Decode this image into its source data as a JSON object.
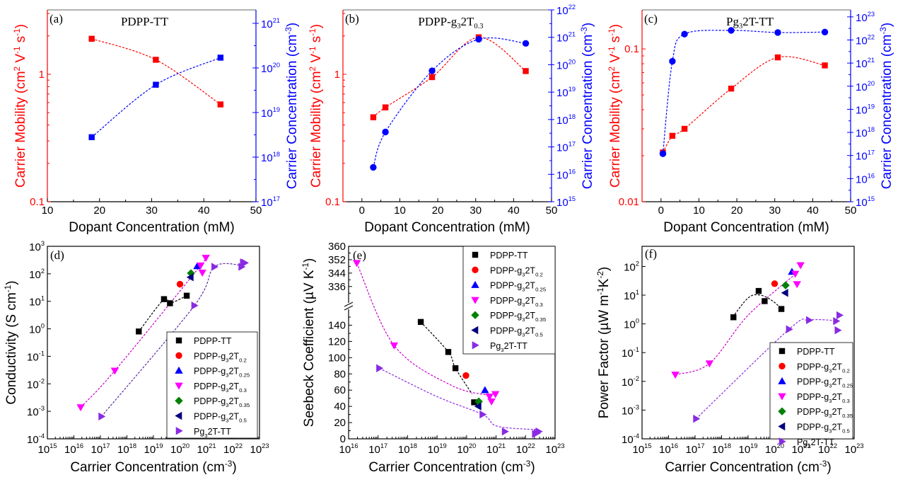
{
  "chart_data": [
    {
      "id": "a",
      "type": "scatter",
      "panel_label": "(a)",
      "title": "PDPP-TT",
      "xlabel": "Dopant Concentration (mM)",
      "ylabel_left": "Carrier Mobility (cm2 V-1 s-1)",
      "ylabel_right": "Carrier Concentration (cm-3)",
      "xlim": [
        10,
        50
      ],
      "xticks": [
        10,
        20,
        30,
        40,
        50
      ],
      "ylim_left": [
        0.1,
        3.2
      ],
      "yscale_left": "log",
      "yticks_left": [
        {
          "v": 0.1,
          "label": "0.1"
        },
        {
          "v": 1,
          "label": "1"
        }
      ],
      "ylim_right": [
        1e+17,
        2e+21
      ],
      "yscale_right": "log",
      "yticks_right_exp": [
        17,
        18,
        19,
        20,
        21
      ],
      "series": [
        {
          "name": "Carrier Mobility",
          "axis": "left",
          "color": "#ff0000",
          "marker": "square",
          "x": [
            18.5,
            30.8,
            43.2
          ],
          "y": [
            1.9,
            1.3,
            0.58
          ]
        },
        {
          "name": "Carrier Concentration",
          "axis": "right",
          "color": "#0000ff",
          "marker": "square",
          "x": [
            18.5,
            30.8,
            43.2
          ],
          "y": [
            2.8e+18,
            4.2e+19,
            1.7e+20
          ]
        }
      ]
    },
    {
      "id": "b",
      "type": "scatter",
      "panel_label": "(b)",
      "title": "PDPP-g3T0.3",
      "title_parts": [
        "PDPP-g",
        "3",
        "2T",
        "0.3"
      ],
      "xlabel": "Dopant Concentration (mM)",
      "ylabel_left": "Carrier Mobility (cm2 V-1 s-1)",
      "ylabel_right": "Carrier Concentration (cm-3)",
      "xlim": [
        -5,
        50
      ],
      "xticks": [
        0,
        10,
        20,
        30,
        40,
        50
      ],
      "ylim_left": [
        0.1,
        3.2
      ],
      "yscale_left": "log",
      "yticks_left": [
        {
          "v": 0.1,
          "label": "0.1"
        },
        {
          "v": 1,
          "label": "1"
        }
      ],
      "ylim_right": [
        1000000000000000.0,
        1e+22
      ],
      "yscale_right": "log",
      "yticks_right_exp": [
        15,
        16,
        17,
        18,
        19,
        20,
        21,
        22
      ],
      "series": [
        {
          "name": "Carrier Mobility",
          "axis": "left",
          "color": "#ff0000",
          "marker": "square",
          "x": [
            3,
            6.2,
            18.5,
            30.8,
            43.2
          ],
          "y": [
            0.46,
            0.55,
            0.95,
            1.95,
            1.06
          ]
        },
        {
          "name": "Carrier Concentration",
          "axis": "right",
          "color": "#0000ff",
          "marker": "circle",
          "x": [
            3,
            6.2,
            18.5,
            30.8,
            43.2
          ],
          "y": [
            1.8e+16,
            3.5e+17,
            6e+19,
            8.5e+20,
            6e+20
          ]
        }
      ]
    },
    {
      "id": "c",
      "type": "scatter",
      "panel_label": "(c)",
      "title": "Pg32T-TT",
      "title_parts": [
        "Pg",
        "3",
        "2T-TT"
      ],
      "xlabel": "Dopant Concentration (mM)",
      "ylabel_left": "Carrier Mobility (cm2 V-1 s-1)",
      "ylabel_right": "Carrier Concentration (cm-3)",
      "xlim": [
        -5,
        50
      ],
      "xticks": [
        0,
        10,
        20,
        30,
        40,
        50
      ],
      "ylim_left": [
        0.01,
        0.18
      ],
      "yscale_left": "log",
      "yticks_left": [
        {
          "v": 0.01,
          "label": "0.01"
        },
        {
          "v": 0.1,
          "label": "0.1"
        }
      ],
      "ylim_right": [
        1000000000000000.0,
        2e+23
      ],
      "yscale_right": "log",
      "yticks_right_exp": [
        15,
        16,
        17,
        18,
        19,
        20,
        21,
        22,
        23
      ],
      "series": [
        {
          "name": "Carrier Mobility",
          "axis": "left",
          "color": "#ff0000",
          "marker": "square",
          "x": [
            0.5,
            3,
            6.2,
            18.5,
            30.8,
            43.2
          ],
          "y": [
            0.021,
            0.027,
            0.03,
            0.055,
            0.088,
            0.078
          ]
        },
        {
          "name": "Carrier Concentration",
          "axis": "right",
          "color": "#0000ff",
          "marker": "circle",
          "x": [
            0.5,
            3,
            6.2,
            18.5,
            30.8,
            43.2
          ],
          "y": [
            1.2e+17,
            1.2e+21,
            1.8e+22,
            2.6e+22,
            2.1e+22,
            2.2e+22
          ]
        }
      ]
    },
    {
      "id": "d",
      "type": "scatter",
      "panel_label": "(d)",
      "xlabel": "Carrier Concentration (cm-3)",
      "ylabel": "Conductivity (S cm-1)",
      "xscale": "log",
      "yscale": "log",
      "xlim_exp": [
        15,
        23
      ],
      "ylim_exp": [
        -4,
        3
      ],
      "legend_position": "bottom-right",
      "series": [
        {
          "name": "PDPP-TT",
          "color": "#000000",
          "marker": "square",
          "x": [
            2.8e+18,
            2.5e+19,
            4.2e+19,
            1.8e+20
          ],
          "y": [
            0.8,
            12,
            8.5,
            16
          ]
        },
        {
          "name": "PDPP-g3T0.2",
          "color": "#ff0000",
          "marker": "circle",
          "x": [
            1e+20
          ],
          "y": [
            42
          ]
        },
        {
          "name": "PDPP-g3T0.25",
          "color": "#0000ff",
          "marker": "triangle-up",
          "x": [
            4.5e+20
          ],
          "y": [
            190
          ]
        },
        {
          "name": "PDPP-g3T0.3",
          "color": "#ff00ff",
          "marker": "triangle-down",
          "x": [
            1.8e+16,
            3.5e+17,
            6e+20,
            7e+20,
            9.5e+20
          ],
          "y": [
            0.0014,
            0.03,
            200,
            110,
            380
          ]
        },
        {
          "name": "PDPP-g3T0.35",
          "color": "#008000",
          "marker": "diamond",
          "x": [
            2.6e+20
          ],
          "y": [
            105
          ]
        },
        {
          "name": "PDPP-g3T0.5",
          "color": "#000080",
          "marker": "triangle-left",
          "x": [
            2.5e+20
          ],
          "y": [
            75
          ]
        },
        {
          "name": "Pg32T-TT",
          "color": "#8a2be2",
          "marker": "triangle-right",
          "x": [
            1.1e+17,
            3.5e+20,
            2e+21,
            2.1e+22,
            2.4e+22,
            2.8e+22
          ],
          "y": [
            0.00065,
            7,
            180,
            180,
            260,
            250
          ]
        }
      ],
      "legend": [
        "PDPP-TT",
        "PDPP-g3T0.2",
        "PDPP-g3T0.25",
        "PDPP-g3T0.3",
        "PDPP-g3T0.35",
        "PDPP-g3T0.5",
        "Pg32T-TT"
      ]
    },
    {
      "id": "e",
      "type": "scatter",
      "panel_label": "(e)",
      "xlabel": "Carrier Concentration (cm-3)",
      "ylabel": "Seebeck Coefficient (µV K-1)",
      "xscale": "log",
      "xlim_exp": [
        16,
        23
      ],
      "ylim_lower": [
        0,
        150
      ],
      "yticks_lower": [
        0,
        20,
        40,
        60,
        80,
        100,
        120,
        140
      ],
      "ylim_upper": [
        330,
        360
      ],
      "yticks_upper": [
        336,
        344,
        352,
        360
      ],
      "axis_break": true,
      "legend_position": "top-right",
      "series": [
        {
          "name": "PDPP-TT",
          "color": "#000000",
          "marker": "square",
          "x": [
            2.8e+18,
            2.4e+19,
            4.2e+19,
            1.8e+20
          ],
          "y": [
            144,
            107,
            87,
            45
          ]
        },
        {
          "name": "PDPP-g3T0.2",
          "color": "#ff0000",
          "marker": "circle",
          "x": [
            9.5e+19
          ],
          "y": [
            78
          ]
        },
        {
          "name": "PDPP-g3T0.25",
          "color": "#0000ff",
          "marker": "triangle-up",
          "x": [
            4.2e+20
          ],
          "y": [
            60
          ]
        },
        {
          "name": "PDPP-g3T0.3",
          "color": "#ff00ff",
          "marker": "triangle-down",
          "x": [
            1.9e+16,
            3.5e+17,
            6e+20,
            7e+20,
            9.5e+20
          ],
          "y": [
            350,
            115,
            52,
            46,
            55
          ]
        },
        {
          "name": "PDPP-g3T0.35",
          "color": "#008000",
          "marker": "diamond",
          "x": [
            2.6e+20
          ],
          "y": [
            46
          ]
        },
        {
          "name": "PDPP-g3T0.5",
          "color": "#000080",
          "marker": "triangle-left",
          "x": [
            2.5e+20
          ],
          "y": [
            40
          ]
        },
        {
          "name": "Pg32T-TT",
          "color": "#8a2be2",
          "marker": "triangle-right",
          "x": [
            1.1e+17,
            3.5e+20,
            2e+21,
            2.1e+22,
            2.4e+22,
            2.8e+22
          ],
          "y": [
            87,
            30,
            9,
            6,
            7,
            9
          ]
        }
      ],
      "legend": [
        "PDPP-TT",
        "PDPP-g3T0.2",
        "PDPP-g3T0.25",
        "PDPP-g3T0.3",
        "PDPP-g3T0.35",
        "PDPP-g3T0.5",
        "Pg32T-TT"
      ]
    },
    {
      "id": "f",
      "type": "scatter",
      "panel_label": "(f)",
      "xlabel": "Carrier Concentration (cm-3)",
      "ylabel": "Power Factor (µW m-1K-2)",
      "xscale": "log",
      "yscale": "log",
      "xlim_exp": [
        15,
        23
      ],
      "ylim_exp": [
        -4,
        2.7
      ],
      "yticks_exp": [
        -4,
        -3,
        -2,
        -1,
        0,
        1,
        2
      ],
      "legend_position": "bottom-right",
      "series": [
        {
          "name": "PDPP-TT",
          "color": "#000000",
          "marker": "square",
          "x": [
            2.8e+18,
            2.5e+19,
            4.2e+19,
            1.8e+20
          ],
          "y": [
            1.7,
            14,
            6.2,
            3.3
          ]
        },
        {
          "name": "PDPP-g3T0.2",
          "color": "#ff0000",
          "marker": "circle",
          "x": [
            1e+20
          ],
          "y": [
            25
          ]
        },
        {
          "name": "PDPP-g3T0.25",
          "color": "#0000ff",
          "marker": "triangle-up",
          "x": [
            4.5e+20
          ],
          "y": [
            65
          ]
        },
        {
          "name": "PDPP-g3T0.3",
          "color": "#ff00ff",
          "marker": "triangle-down",
          "x": [
            1.8e+16,
            3.5e+17,
            6e+20,
            7e+20,
            9.5e+20
          ],
          "y": [
            0.017,
            0.042,
            55,
            24,
            110
          ]
        },
        {
          "name": "PDPP-g3T0.35",
          "color": "#008000",
          "marker": "diamond",
          "x": [
            2.6e+20
          ],
          "y": [
            22
          ]
        },
        {
          "name": "PDPP-g3T0.5",
          "color": "#000080",
          "marker": "triangle-left",
          "x": [
            2.5e+20
          ],
          "y": [
            12
          ]
        },
        {
          "name": "Pg32T-TT",
          "color": "#8a2be2",
          "marker": "triangle-right",
          "x": [
            1.1e+17,
            3.5e+20,
            2e+21,
            2.1e+22,
            2.4e+22,
            2.8e+22
          ],
          "y": [
            0.0005,
            0.65,
            1.35,
            1.25,
            0.6,
            2.0
          ]
        }
      ],
      "legend": [
        "PDPP-TT",
        "PDPP-g3T0.2",
        "PDPP-g3T0.25",
        "PDPP-g3T0.3",
        "PDPP-g3T0.35",
        "PDPP-g3T0.5",
        "Pg32T-TT"
      ]
    }
  ],
  "labels": {
    "xlabel_dopant": "Dopant Concentration (mM)",
    "xlabel_carrier": "Carrier Concentration (cm",
    "mobility": "Carrier Mobility (cm",
    "concentration": "Carrier Concentration (cm",
    "conductivity": "Conductivity (S cm",
    "seebeck": "Seebeck Coefficient (µV K",
    "power": "Power Factor (µW m"
  }
}
